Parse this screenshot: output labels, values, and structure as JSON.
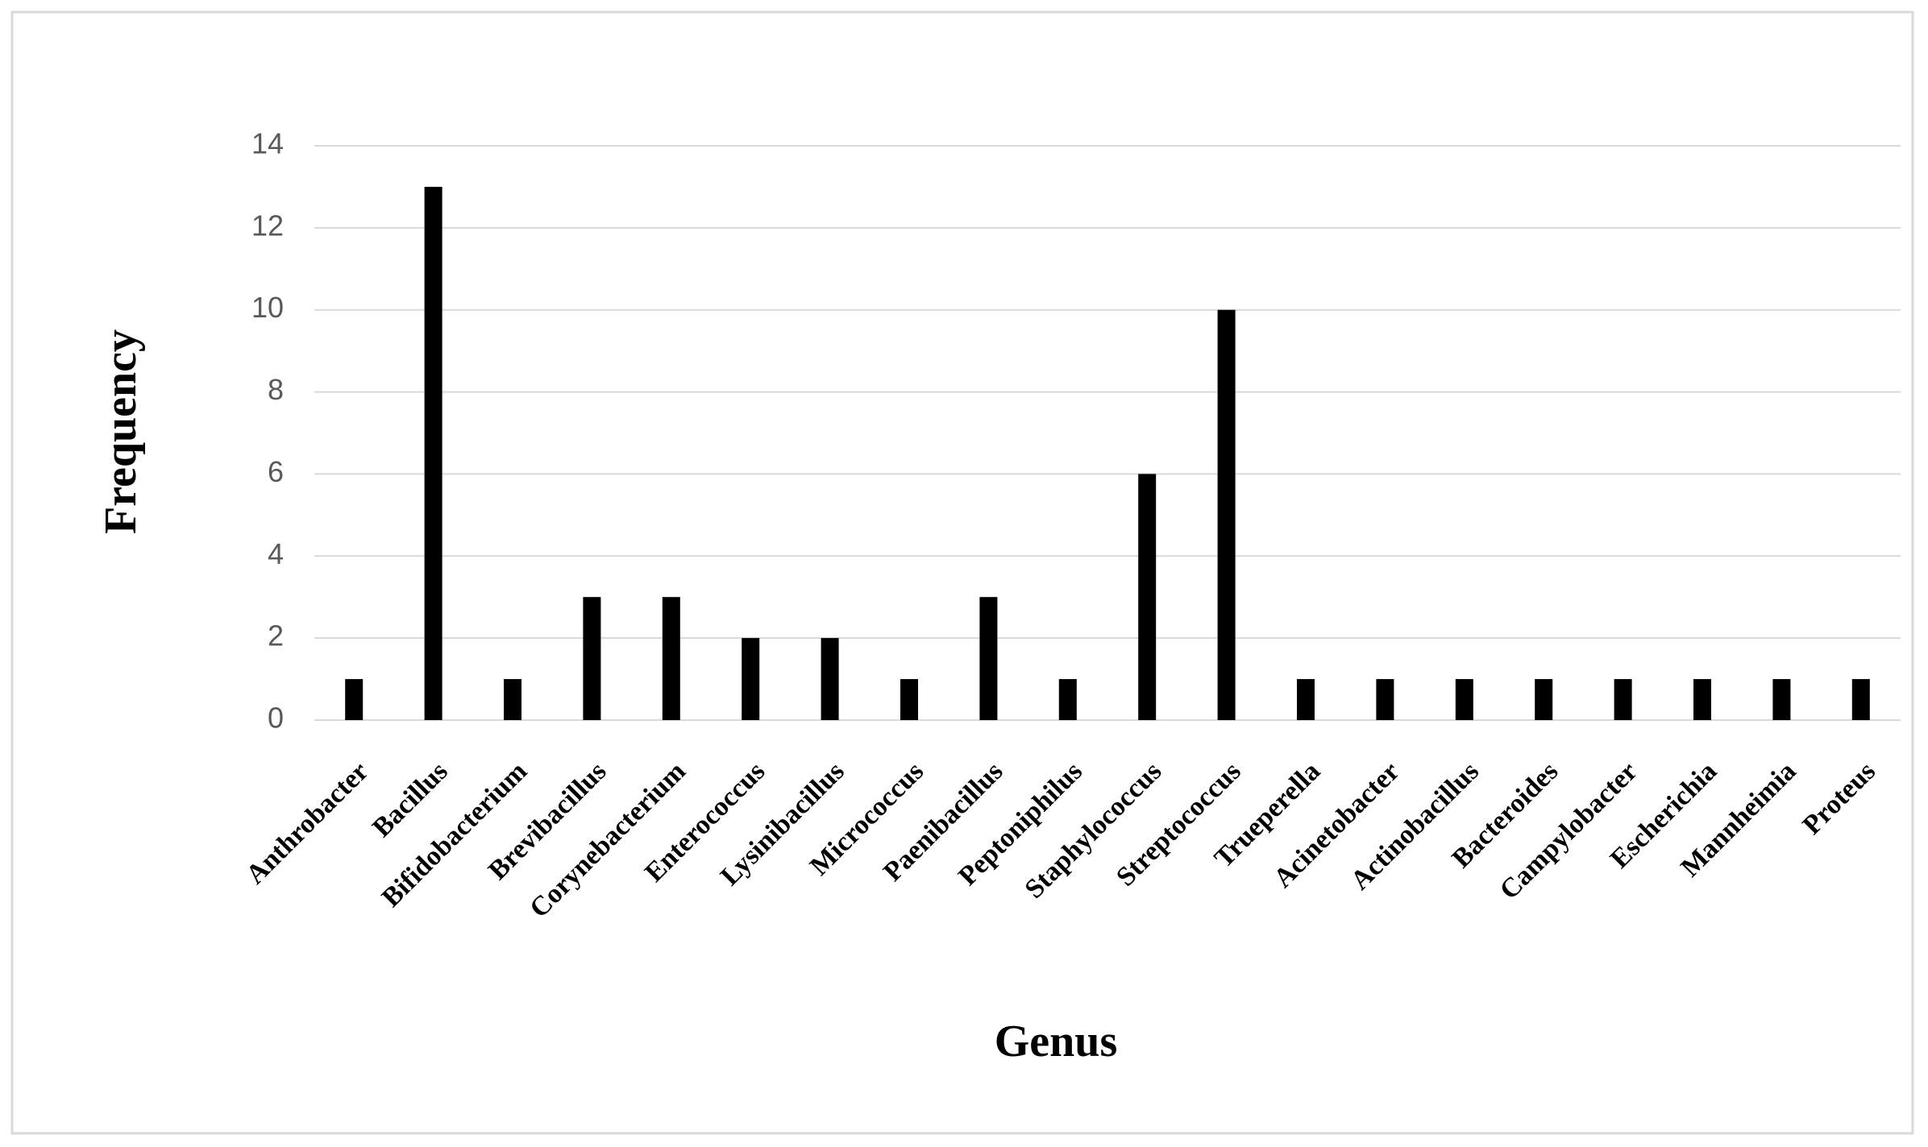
{
  "chart_data": {
    "type": "bar",
    "x_label": "Genus",
    "y_label": "Frequency",
    "categories": [
      "Anthrobacter",
      "Bacillus",
      "Bifidobacterium",
      "Brevibacillus",
      "Corynebacterium",
      "Enterococcus",
      "Lysinibacillus",
      "Micrococcus",
      "Paenibacillus",
      "Peptoniphilus",
      "Staphylococcus",
      "Streptococcus",
      "Trueperella",
      "Acinetobacter",
      "Actinobacillus",
      "Bacteroides",
      "Campylobacter",
      "Escherichia",
      "Mannheimia",
      "Proteus"
    ],
    "values": [
      1,
      13,
      1,
      3,
      3,
      2,
      2,
      1,
      3,
      1,
      6,
      10,
      1,
      1,
      1,
      1,
      1,
      1,
      1,
      1
    ],
    "color": "#000000",
    "ylim": [
      0,
      14
    ],
    "yticks": [
      0,
      2,
      4,
      6,
      8,
      10,
      12,
      14
    ],
    "grid": true
  }
}
